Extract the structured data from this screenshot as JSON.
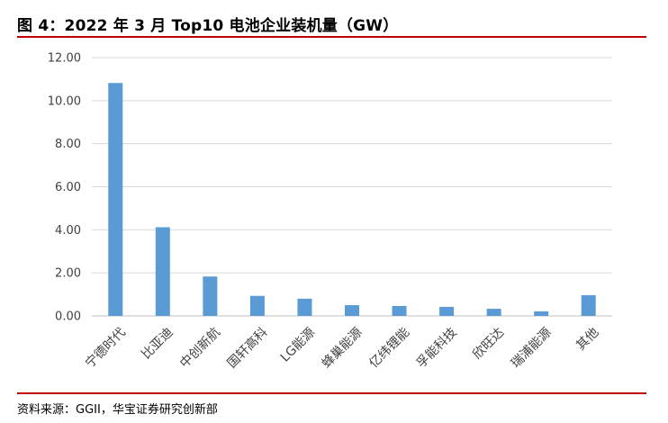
{
  "figure": {
    "title": "图 4：2022 年 3 月 Top10 电池企业装机量（GW）",
    "source": "资料来源：GGII，华宝证券研究创新部"
  },
  "colors": {
    "bar": "#5b9bd5",
    "rule": "#c00000",
    "grid": "#d9d9d9",
    "axis": "#bfbfbf"
  },
  "chart_data": {
    "type": "bar",
    "title": "图 4：2022 年 3 月 Top10 电池企业装机量（GW）",
    "categories": [
      "宁德时代",
      "比亚迪",
      "中创新航",
      "国轩高科",
      "LG能源",
      "蜂巢能源",
      "亿纬锂能",
      "孚能科技",
      "欣旺达",
      "瑞浦能源",
      "其他"
    ],
    "series": [
      {
        "values": [
          10.82,
          4.12,
          1.83,
          0.93,
          0.8,
          0.5,
          0.46,
          0.42,
          0.33,
          0.21,
          0.96
        ]
      }
    ],
    "yticks": [
      "0.00",
      "2.00",
      "4.00",
      "6.00",
      "8.00",
      "10.00",
      "12.00"
    ],
    "ylim": [
      0,
      12
    ],
    "xlabel": "",
    "ylabel": "",
    "grid": true,
    "legend": "none",
    "xtick_rotation": -45
  }
}
